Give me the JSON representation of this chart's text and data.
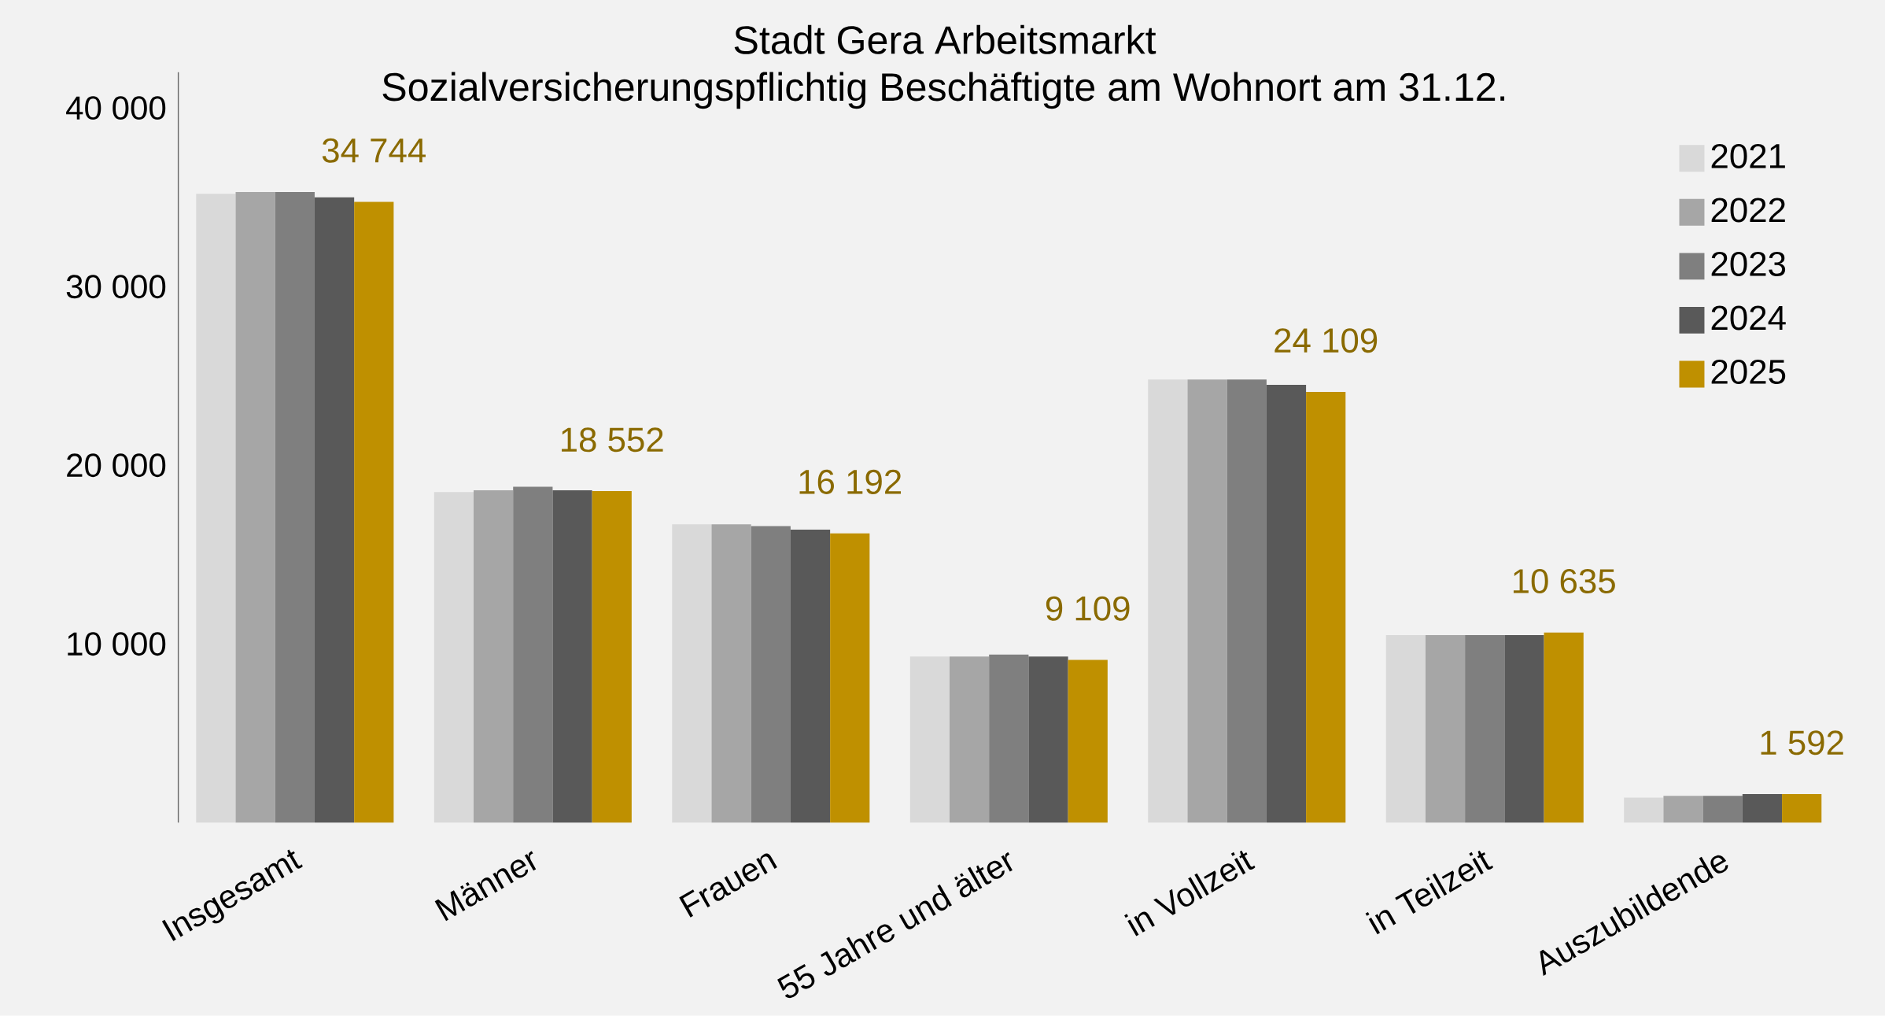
{
  "chart_data": {
    "type": "bar",
    "title": "Stadt Gera Arbeitsmarkt\nSozialversicherungspflichtig Beschäftigte am Wohnort am 31.12.",
    "categories": [
      "Insgesamt",
      "Männer",
      "Frauen",
      "55 Jahre und älter",
      "in Vollzeit",
      "in Teilzeit",
      "Auszubildende"
    ],
    "series": [
      {
        "name": "2021",
        "color": "#d9d9d9",
        "values": [
          35200,
          18500,
          16700,
          9300,
          24800,
          10500,
          1400
        ]
      },
      {
        "name": "2022",
        "color": "#a6a6a6",
        "values": [
          35300,
          18600,
          16700,
          9300,
          24800,
          10500,
          1500
        ]
      },
      {
        "name": "2023",
        "color": "#7f7f7f",
        "values": [
          35300,
          18800,
          16600,
          9400,
          24800,
          10500,
          1500
        ]
      },
      {
        "name": "2024",
        "color": "#595959",
        "values": [
          35000,
          18600,
          16400,
          9300,
          24500,
          10500,
          1600
        ]
      },
      {
        "name": "2025",
        "color": "#bf9000",
        "values": [
          34744,
          18552,
          16192,
          9109,
          24109,
          10635,
          1592
        ],
        "value_labels": [
          "34 744",
          "18 552",
          "16 192",
          "9 109",
          "24 109",
          "10 635",
          "1 592"
        ]
      }
    ],
    "ylim": [
      0,
      42000
    ],
    "yticks": [
      {
        "value": 10000,
        "label": "10 000"
      },
      {
        "value": 20000,
        "label": "20 000"
      },
      {
        "value": 30000,
        "label": "30 000"
      },
      {
        "value": 40000,
        "label": "40 000"
      }
    ],
    "legend": "right"
  }
}
